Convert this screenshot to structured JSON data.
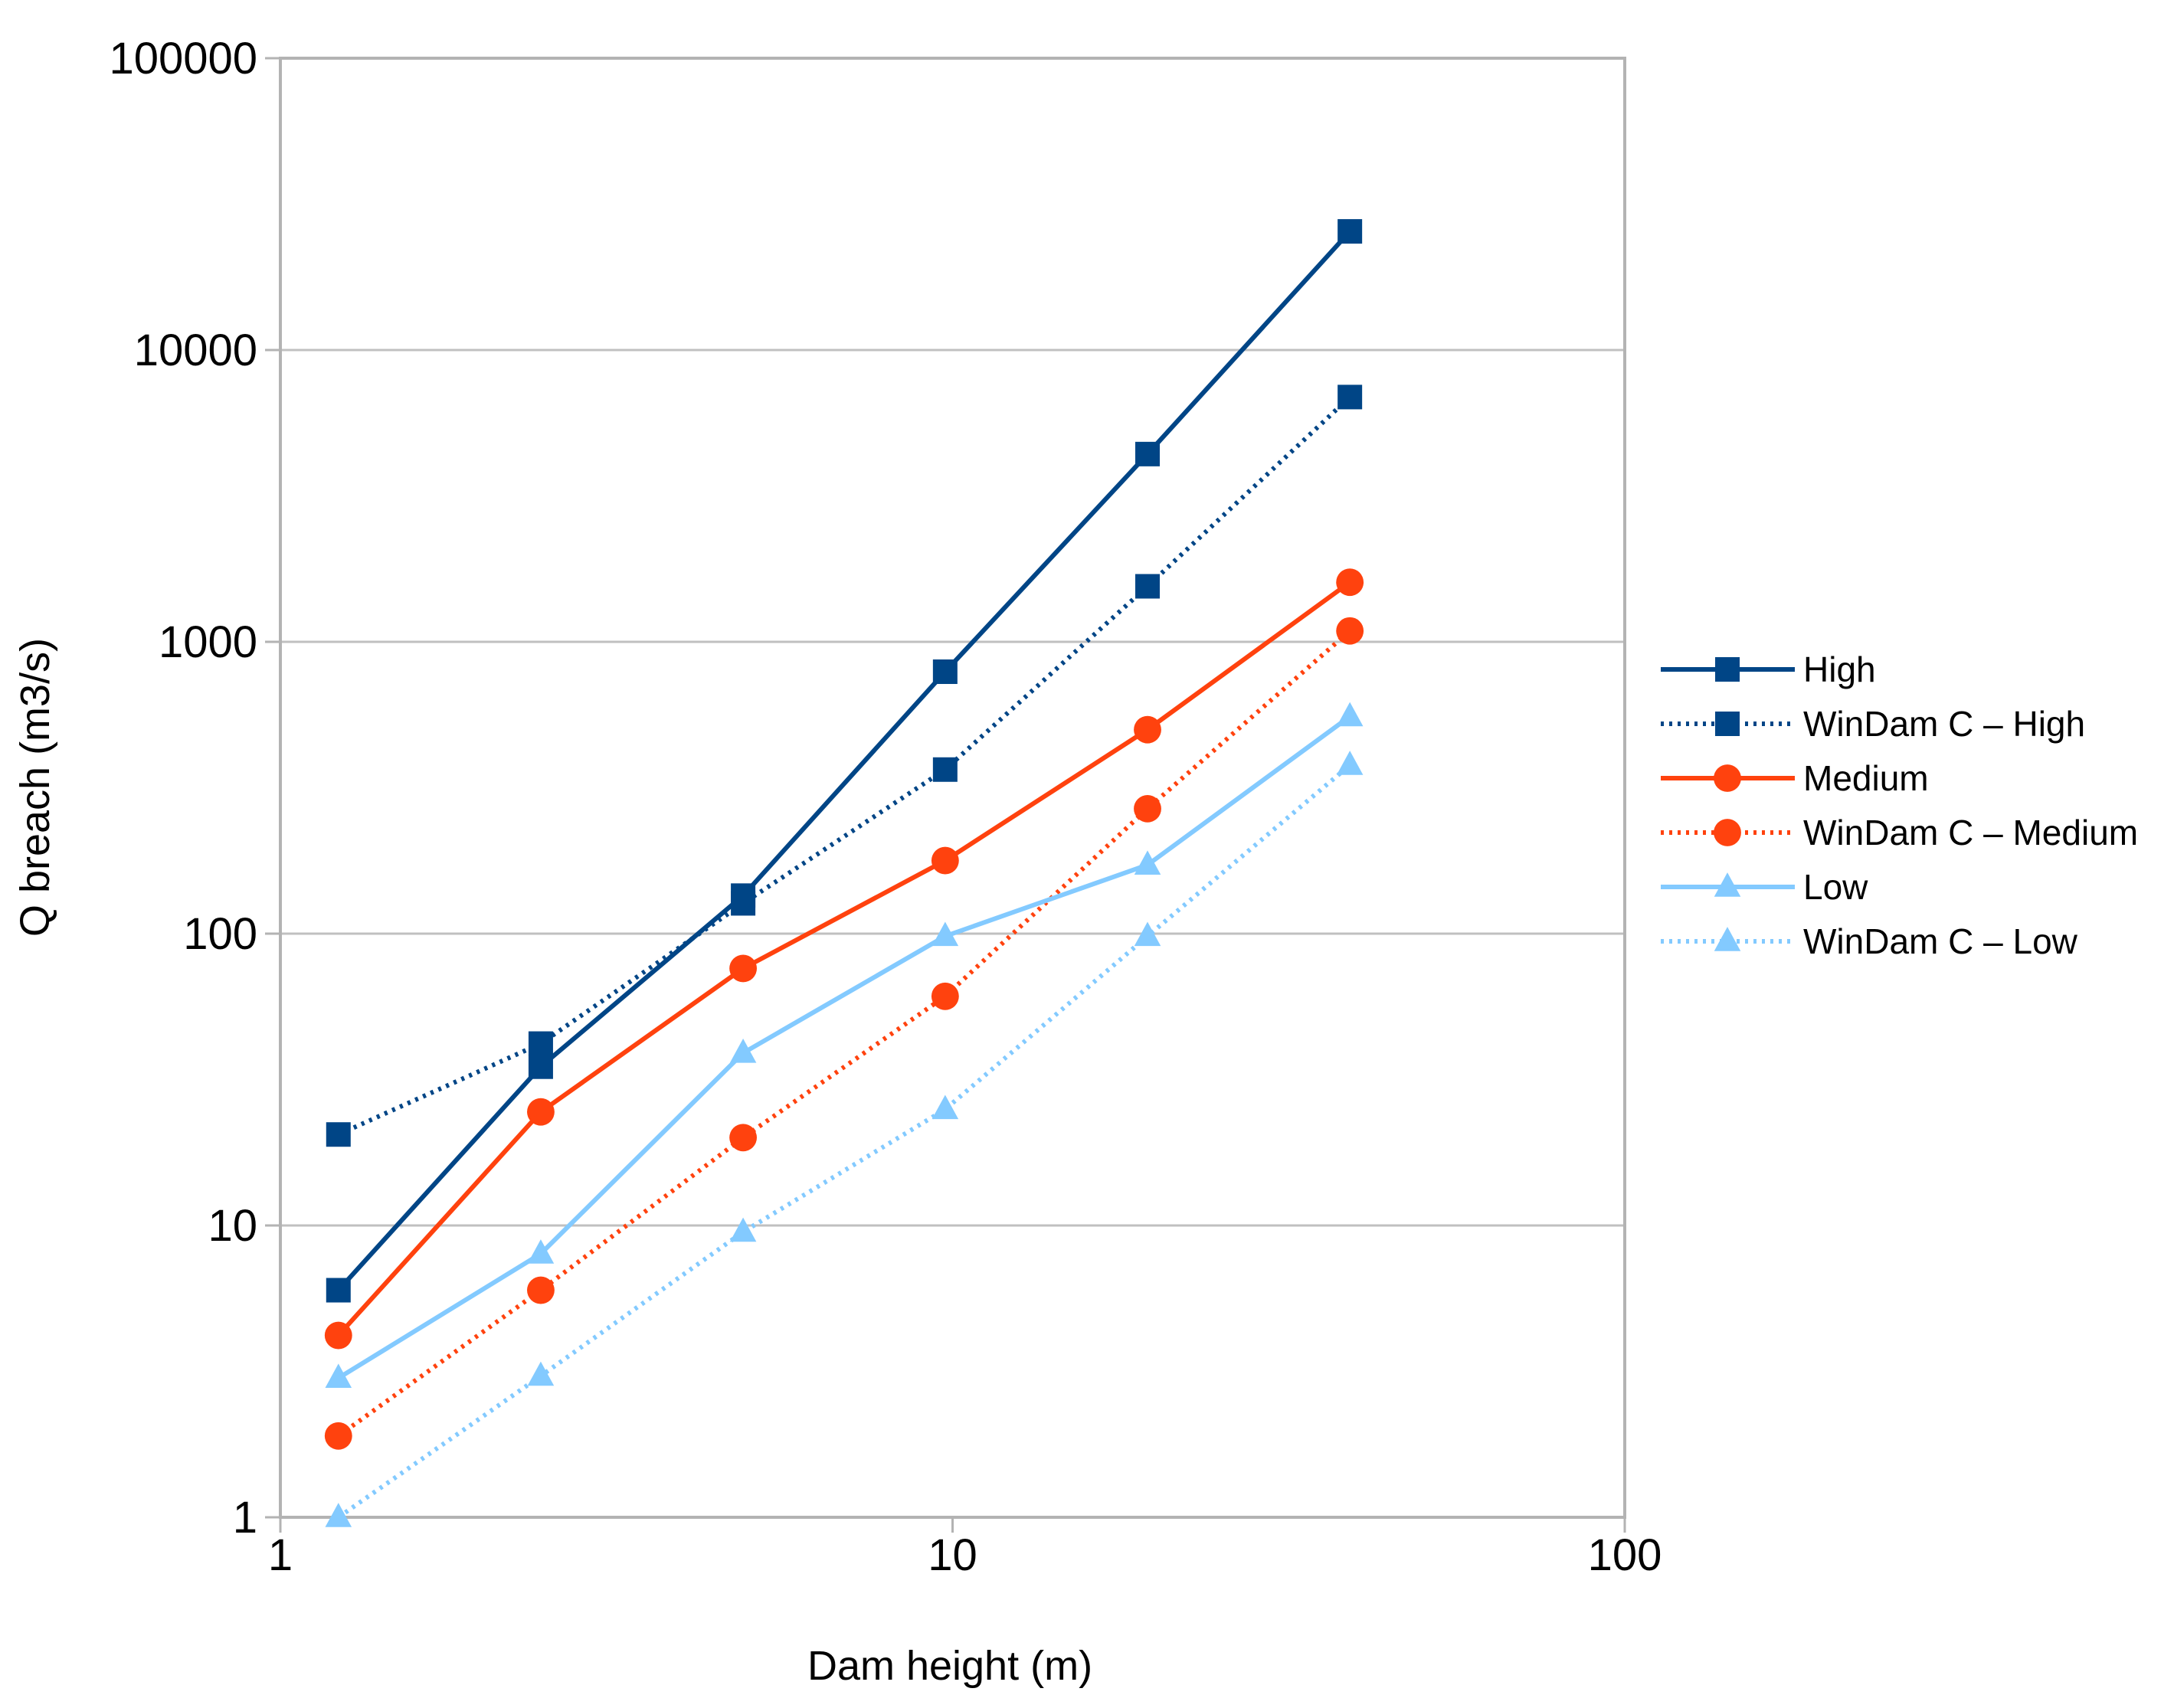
{
  "colors": {
    "high": "#004586",
    "medium": "#ff420e",
    "low": "#83caff",
    "grid": "#c0c0c0",
    "frame": "#b3b3b3"
  },
  "chart_data": {
    "type": "line",
    "title": "",
    "xlabel": "Dam height (m)",
    "ylabel": "Q breach (m3/s)",
    "xscale": "log",
    "yscale": "log",
    "xlim": [
      1,
      100
    ],
    "ylim": [
      1,
      100000
    ],
    "xticks": [
      {
        "value": 1,
        "label": "1"
      },
      {
        "value": 10,
        "label": "10"
      },
      {
        "value": 100,
        "label": "100"
      }
    ],
    "yticks": [
      {
        "value": 1,
        "label": "1"
      },
      {
        "value": 10,
        "label": "10"
      },
      {
        "value": 100,
        "label": "100"
      },
      {
        "value": 1000,
        "label": "1000"
      },
      {
        "value": 10000,
        "label": "10000"
      },
      {
        "value": 100000,
        "label": "100000"
      }
    ],
    "grid": "horizontal",
    "legend_position": "right",
    "x": [
      1.22,
      2.44,
      4.88,
      9.75,
      19.5,
      39
    ],
    "series": [
      {
        "key": "high",
        "name": "High",
        "color": "#004586",
        "dash": "solid",
        "marker": "square",
        "values": [
          6,
          35,
          135,
          790,
          4400,
          25500
        ]
      },
      {
        "key": "windam-high",
        "name": "WinDam C – High",
        "color": "#004586",
        "dash": "dotted",
        "marker": "square",
        "values": [
          20.5,
          42,
          127,
          365,
          1550,
          6900
        ]
      },
      {
        "key": "medium",
        "name": "Medium",
        "color": "#ff420e",
        "dash": "solid",
        "marker": "circle",
        "values": [
          4.2,
          24.5,
          76,
          178,
          500,
          1600
        ]
      },
      {
        "key": "windam-medium",
        "name": "WinDam C – Medium",
        "color": "#ff420e",
        "dash": "dotted",
        "marker": "circle",
        "values": [
          1.9,
          6,
          20,
          61,
          268,
          1090
        ]
      },
      {
        "key": "low",
        "name": "Low",
        "color": "#83caff",
        "dash": "solid",
        "marker": "triangle",
        "values": [
          3,
          8,
          39,
          98,
          172,
          555
        ]
      },
      {
        "key": "windam-low",
        "name": "WinDam C – Low",
        "color": "#83caff",
        "dash": "dotted",
        "marker": "triangle",
        "values": [
          1,
          3.05,
          9.5,
          25,
          98,
          378
        ]
      }
    ]
  }
}
